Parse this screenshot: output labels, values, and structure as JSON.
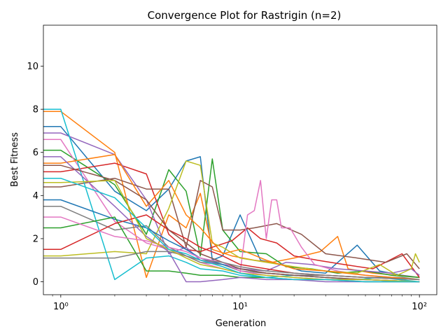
{
  "chart_data": {
    "type": "line",
    "title": "Convergence Plot for Rastrigin (n=2)",
    "xlabel": "Generation",
    "ylabel": "Best Fitness",
    "xscale": "log",
    "xlim": [
      0.8,
      125
    ],
    "ylim": [
      -0.6,
      11.9
    ],
    "xticks": [
      1,
      10,
      100
    ],
    "xtick_labels": [
      "10⁰",
      "10¹",
      "10²"
    ],
    "yticks": [
      0,
      2,
      4,
      6,
      8,
      10
    ],
    "ytick_labels": [
      "0",
      "2",
      "4",
      "6",
      "8",
      "10"
    ],
    "grid": false,
    "legend": false,
    "colors": [
      "#1f77b4",
      "#ff7f0e",
      "#2ca02c",
      "#d62728",
      "#9467bd",
      "#8c564b",
      "#e377c2",
      "#7f7f7f",
      "#bcbd22",
      "#17becf"
    ],
    "series": [
      {
        "x": [
          0,
          1,
          2,
          3,
          4,
          5,
          6,
          7,
          8,
          10,
          13,
          17,
          22,
          30,
          45,
          60,
          80,
          100
        ],
        "values": [
          7.2,
          7.2,
          4.2,
          3.3,
          4.3,
          5.6,
          5.8,
          1.0,
          1.2,
          3.1,
          1.0,
          0.8,
          0.5,
          0.4,
          1.7,
          0.5,
          0.3,
          0.2
        ]
      },
      {
        "x": [
          0,
          1,
          2,
          3,
          4,
          5,
          6,
          7,
          9,
          12,
          15,
          20,
          28,
          35,
          40,
          55,
          75,
          100
        ],
        "values": [
          7.9,
          7.9,
          6.0,
          0.2,
          3.1,
          2.5,
          4.1,
          1.5,
          1.2,
          1.0,
          0.9,
          1.1,
          1.4,
          2.1,
          0.6,
          0.4,
          0.3,
          0.2
        ]
      },
      {
        "x": [
          0,
          1,
          2,
          3,
          4,
          5,
          6,
          7,
          8,
          10,
          14,
          18,
          25,
          35,
          50,
          70,
          100
        ],
        "values": [
          6.1,
          6.1,
          4.5,
          2.2,
          5.2,
          4.2,
          1.2,
          5.7,
          2.4,
          1.4,
          1.3,
          0.7,
          0.6,
          0.4,
          0.5,
          0.3,
          0.2
        ]
      },
      {
        "x": [
          0,
          1,
          2,
          3,
          4,
          5,
          6,
          7,
          9,
          11,
          13,
          16,
          20,
          27,
          38,
          55,
          80,
          100
        ],
        "values": [
          5.1,
          5.1,
          5.5,
          5.0,
          2.2,
          1.5,
          1.4,
          1.6,
          1.9,
          2.5,
          2.0,
          1.8,
          1.2,
          1.0,
          0.8,
          0.6,
          1.3,
          0.2
        ]
      },
      {
        "x": [
          0,
          1,
          2,
          3,
          4,
          5,
          6,
          8,
          10,
          14,
          18,
          25,
          35,
          50,
          70,
          90,
          100
        ],
        "values": [
          6.9,
          6.9,
          5.9,
          3.8,
          1.3,
          1.6,
          1.0,
          0.8,
          0.6,
          0.5,
          0.9,
          0.8,
          0.6,
          0.5,
          0.4,
          0.6,
          0.3
        ]
      },
      {
        "x": [
          0,
          1,
          2,
          3,
          4,
          5,
          6,
          7,
          8,
          10,
          12,
          16,
          22,
          30,
          45,
          65,
          85,
          100
        ],
        "values": [
          4.4,
          4.4,
          4.8,
          4.3,
          4.3,
          1.6,
          4.7,
          4.4,
          2.4,
          2.4,
          2.5,
          2.7,
          2.2,
          1.3,
          1.1,
          0.9,
          1.3,
          0.6
        ]
      },
      {
        "x": [
          0,
          1,
          2,
          3,
          4,
          5,
          6,
          8,
          10,
          11,
          12,
          13,
          14,
          15,
          16,
          17,
          19,
          22,
          26,
          35,
          50,
          100
        ],
        "values": [
          6.6,
          6.6,
          2.8,
          1.8,
          1.5,
          1.2,
          0.9,
          0.6,
          0.4,
          3.1,
          3.3,
          4.7,
          2.0,
          3.8,
          3.8,
          2.5,
          2.5,
          1.6,
          0.8,
          0.5,
          0.3,
          0.1
        ]
      },
      {
        "x": [
          0,
          1,
          2,
          3,
          4,
          5,
          6,
          8,
          10,
          14,
          20,
          30,
          50,
          80,
          100
        ],
        "values": [
          3.5,
          3.5,
          2.4,
          2.6,
          1.6,
          1.2,
          0.9,
          0.8,
          0.5,
          0.4,
          0.3,
          0.3,
          0.2,
          0.2,
          0.1
        ]
      },
      {
        "x": [
          0,
          1,
          2,
          3,
          4,
          5,
          6,
          7,
          8,
          10,
          14,
          20,
          30,
          45,
          60,
          75,
          90,
          95,
          100
        ],
        "values": [
          1.2,
          1.2,
          1.4,
          1.3,
          3.4,
          5.6,
          5.4,
          1.8,
          1.6,
          1.1,
          0.9,
          0.7,
          0.5,
          0.4,
          0.8,
          0.3,
          0.6,
          1.3,
          0.9
        ]
      },
      {
        "x": [
          0,
          1,
          2,
          3,
          4,
          5,
          6,
          8,
          10,
          14,
          20,
          30,
          45,
          60,
          100
        ],
        "values": [
          8.0,
          8.0,
          0.1,
          1.1,
          1.2,
          0.9,
          0.6,
          0.5,
          0.3,
          0.2,
          0.3,
          0.2,
          0.1,
          0.2,
          0.0
        ]
      },
      {
        "x": [
          0,
          1,
          2,
          3,
          4,
          5,
          6,
          8,
          10,
          14,
          20,
          30,
          50,
          100
        ],
        "values": [
          3.8,
          3.8,
          2.9,
          2.5,
          1.9,
          1.5,
          1.1,
          0.8,
          0.6,
          0.4,
          0.3,
          0.2,
          0.1,
          0.0
        ]
      },
      {
        "x": [
          0,
          1,
          2,
          3,
          4,
          5,
          6,
          8,
          10,
          14,
          20,
          30,
          50,
          100
        ],
        "values": [
          5.5,
          5.5,
          5.9,
          3.5,
          4.7,
          3.1,
          2.5,
          1.3,
          1.5,
          1.0,
          0.6,
          0.5,
          0.3,
          0.1
        ]
      },
      {
        "x": [
          0,
          1,
          2,
          3,
          4,
          5,
          6,
          8,
          10,
          14,
          20,
          30,
          50,
          100
        ],
        "values": [
          2.5,
          2.5,
          3.0,
          0.5,
          0.5,
          0.4,
          0.3,
          0.3,
          0.2,
          0.2,
          0.1,
          0.1,
          0.0,
          0.0
        ]
      },
      {
        "x": [
          0,
          1,
          2,
          3,
          4,
          5,
          6,
          8,
          10,
          14,
          20,
          30,
          50,
          100
        ],
        "values": [
          1.5,
          1.5,
          2.7,
          3.1,
          2.4,
          2.0,
          1.6,
          1.2,
          0.8,
          0.6,
          0.4,
          0.3,
          0.2,
          0.1
        ]
      },
      {
        "x": [
          0,
          1,
          2,
          3,
          4,
          5,
          6,
          8,
          10,
          14,
          20,
          30,
          50,
          100
        ],
        "values": [
          5.8,
          5.8,
          3.5,
          2.1,
          1.4,
          0.0,
          0.0,
          0.1,
          0.2,
          0.1,
          0.1,
          0.0,
          0.0,
          0.0
        ]
      },
      {
        "x": [
          0,
          1,
          2,
          3,
          4,
          5,
          6,
          8,
          10,
          14,
          20,
          30,
          50,
          100
        ],
        "values": [
          5.4,
          5.4,
          4.7,
          3.8,
          2.4,
          1.8,
          1.3,
          0.9,
          0.6,
          0.4,
          0.3,
          0.2,
          0.1,
          0.0
        ]
      },
      {
        "x": [
          0,
          1,
          2,
          3,
          4,
          5,
          6,
          8,
          10,
          14,
          20,
          30,
          50,
          100
        ],
        "values": [
          3.0,
          3.0,
          2.1,
          1.9,
          1.6,
          1.4,
          1.1,
          0.9,
          0.5,
          0.3,
          0.2,
          0.1,
          0.1,
          0.0
        ]
      },
      {
        "x": [
          0,
          1,
          2,
          3,
          4,
          5,
          6,
          8,
          10,
          14,
          20,
          30,
          50,
          100
        ],
        "values": [
          1.1,
          1.1,
          1.1,
          1.4,
          1.4,
          1.2,
          1.0,
          0.9,
          0.7,
          0.5,
          0.4,
          0.3,
          0.2,
          0.1
        ]
      },
      {
        "x": [
          0,
          1,
          2,
          3,
          4,
          5,
          6,
          8,
          10,
          14,
          20,
          30,
          50,
          100
        ],
        "values": [
          4.6,
          4.6,
          4.7,
          2.0,
          1.5,
          1.1,
          0.8,
          0.6,
          0.4,
          0.3,
          0.2,
          0.1,
          0.1,
          0.0
        ]
      },
      {
        "x": [
          0,
          1,
          2,
          3,
          4,
          5,
          6,
          8,
          10,
          14,
          20,
          30,
          50,
          100
        ],
        "values": [
          4.8,
          4.8,
          3.9,
          2.5,
          1.5,
          1.3,
          1.0,
          0.7,
          0.4,
          0.2,
          0.1,
          0.1,
          0.0,
          0.0
        ]
      }
    ]
  }
}
